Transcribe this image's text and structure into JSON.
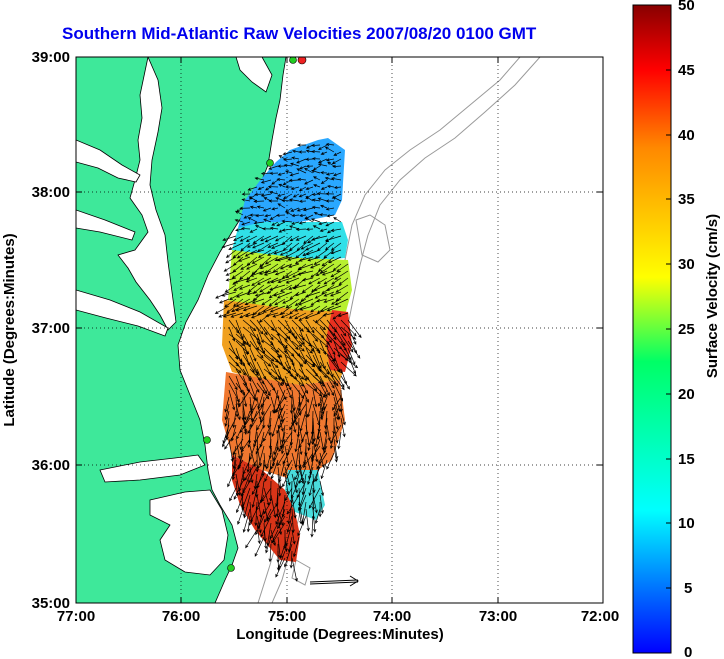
{
  "title": "Southern Mid-Atlantic Raw Velocities 2007/08/20 0100 GMT",
  "axes": {
    "xlabel": "Longitude (Degrees:Minutes)",
    "ylabel": "Latitude (Degrees:Minutes)",
    "xticks": [
      "77:00",
      "76:00",
      "75:00",
      "74:00",
      "73:00",
      "72:00"
    ],
    "yticks": [
      "39:00",
      "38:00",
      "37:00",
      "36:00",
      "35:00"
    ]
  },
  "colorbar": {
    "label": "Surface Velocity (cm/s)",
    "ticks": [
      "50",
      "45",
      "40",
      "35",
      "30",
      "25",
      "20",
      "15",
      "10",
      "5",
      "0"
    ],
    "min": 0,
    "max": 50
  },
  "colors": {
    "land": "#3ee89a",
    "coastline": "#000000",
    "bathymetry": "#9a9a9a",
    "title": "#0000ee",
    "station": "#22cc22",
    "station_highlight": "#ee2222"
  },
  "chart_data": {
    "type": "heatmap",
    "title": "Southern Mid-Atlantic Raw Velocities 2007/08/20 0100 GMT",
    "xlabel": "Longitude (Degrees:Minutes)",
    "ylabel": "Latitude (Degrees:Minutes)",
    "xlim": [
      -77,
      -72
    ],
    "ylim": [
      35,
      39
    ],
    "colorbar_label": "Surface Velocity (cm/s)",
    "colorbar_range": [
      0,
      50
    ],
    "grid": true,
    "velocity_zones": [
      {
        "region": "north (38.1-38.4N, 74.6-75.4W)",
        "speed": 8
      },
      {
        "region": "central upper (37.1-37.6N)",
        "speed": 22
      },
      {
        "region": "central lower (36.4-37.1N)",
        "speed": 33
      },
      {
        "region": "east edge (36.6-36.9N, 74.5W)",
        "speed": 42
      },
      {
        "region": "south shelf (35.6-36.3N)",
        "speed": 28
      },
      {
        "region": "southwest (35.3-35.8N, 75.3W)",
        "speed": 46
      }
    ],
    "stations": [
      {
        "lon": -75.0,
        "lat": 38.98,
        "color": "red"
      },
      {
        "lon": -75.08,
        "lat": 38.98,
        "color": "green"
      },
      {
        "lon": -75.15,
        "lat": 38.23,
        "color": "green"
      },
      {
        "lon": -75.55,
        "lat": 36.18,
        "color": "green"
      },
      {
        "lon": -75.48,
        "lat": 35.25,
        "color": "green"
      }
    ],
    "reference_vector": {
      "lon": -74.55,
      "lat": 35.13,
      "speed": 50
    }
  }
}
